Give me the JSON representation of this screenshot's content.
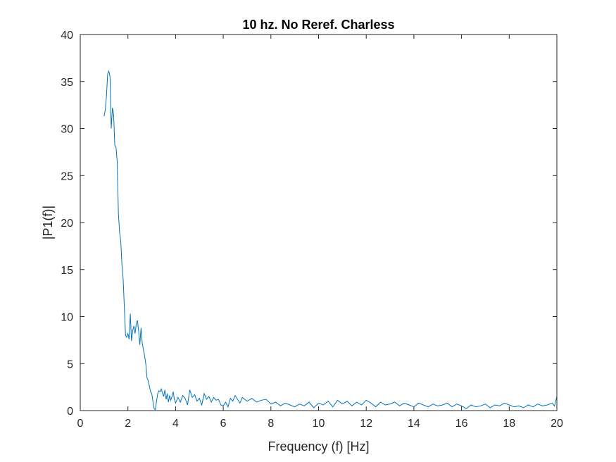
{
  "chart_data": {
    "type": "line",
    "title": "10 hz. No Reref. Charless",
    "xlabel": "Frequency (f) [Hz]",
    "ylabel": "|P1(f)|",
    "xlim": [
      0,
      20
    ],
    "ylim": [
      0,
      40
    ],
    "xticks": [
      0,
      2,
      4,
      6,
      8,
      10,
      12,
      14,
      16,
      18,
      20
    ],
    "yticks": [
      0,
      5,
      10,
      15,
      20,
      25,
      30,
      35,
      40
    ],
    "grid": false,
    "legend": "none",
    "series": [
      {
        "color": "#0072BD",
        "x": [
          1.0,
          1.05,
          1.1,
          1.15,
          1.2,
          1.25,
          1.3,
          1.35,
          1.4,
          1.45,
          1.5,
          1.55,
          1.6,
          1.65,
          1.7,
          1.75,
          1.8,
          1.85,
          1.9,
          1.95,
          2.0,
          2.05,
          2.1,
          2.15,
          2.2,
          2.25,
          2.3,
          2.35,
          2.4,
          2.45,
          2.5,
          2.55,
          2.6,
          2.65,
          2.7,
          2.75,
          2.8,
          2.85,
          2.9,
          2.95,
          3.0,
          3.05,
          3.1,
          3.15,
          3.2,
          3.25,
          3.3,
          3.35,
          3.4,
          3.45,
          3.5,
          3.55,
          3.6,
          3.65,
          3.7,
          3.75,
          3.8,
          3.85,
          3.9,
          3.95,
          4.0,
          4.1,
          4.2,
          4.3,
          4.4,
          4.5,
          4.6,
          4.7,
          4.8,
          4.9,
          5.0,
          5.1,
          5.2,
          5.3,
          5.4,
          5.5,
          5.6,
          5.7,
          5.8,
          5.9,
          6.0,
          6.1,
          6.2,
          6.3,
          6.4,
          6.5,
          6.6,
          6.7,
          6.8,
          6.9,
          7.0,
          7.2,
          7.4,
          7.6,
          7.8,
          8.0,
          8.2,
          8.4,
          8.6,
          8.8,
          9.0,
          9.2,
          9.4,
          9.6,
          9.8,
          10.0,
          10.2,
          10.4,
          10.6,
          10.8,
          11.0,
          11.2,
          11.4,
          11.6,
          11.8,
          12.0,
          12.2,
          12.4,
          12.6,
          12.8,
          13.0,
          13.2,
          13.4,
          13.6,
          13.8,
          14.0,
          14.2,
          14.4,
          14.6,
          14.8,
          15.0,
          15.2,
          15.4,
          15.6,
          15.8,
          16.0,
          16.2,
          16.4,
          16.6,
          16.8,
          17.0,
          17.2,
          17.4,
          17.6,
          17.8,
          18.0,
          18.2,
          18.4,
          18.6,
          18.8,
          19.0,
          19.2,
          19.4,
          19.6,
          19.8,
          19.9,
          20.0
        ],
        "y": [
          31.3,
          32.0,
          33.5,
          35.8,
          36.1,
          35.5,
          30.0,
          32.2,
          31.5,
          28.2,
          28.0,
          26.5,
          21.0,
          19.0,
          18.0,
          15.5,
          14.0,
          11.0,
          8.0,
          7.8,
          8.2,
          7.6,
          10.3,
          7.4,
          8.5,
          9.0,
          8.2,
          9.2,
          9.6,
          8.5,
          7.0,
          8.8,
          7.2,
          6.5,
          5.8,
          5.0,
          3.5,
          3.2,
          2.6,
          2.0,
          1.8,
          1.0,
          0.2,
          0.1,
          1.0,
          1.8,
          2.1,
          2.0,
          2.3,
          1.9,
          1.5,
          2.2,
          1.2,
          1.8,
          0.9,
          1.6,
          1.1,
          1.5,
          2.0,
          1.2,
          0.8,
          1.4,
          0.9,
          1.6,
          1.3,
          0.6,
          2.2,
          1.4,
          1.7,
          1.0,
          1.3,
          0.6,
          1.8,
          1.2,
          1.5,
          0.9,
          1.4,
          1.1,
          1.2,
          0.6,
          0.5,
          0.9,
          0.4,
          1.3,
          1.0,
          1.6,
          1.2,
          0.8,
          1.4,
          1.2,
          1.0,
          1.3,
          0.9,
          1.1,
          1.2,
          0.7,
          0.9,
          0.5,
          0.8,
          0.6,
          0.4,
          0.7,
          0.5,
          0.9,
          0.3,
          0.8,
          0.6,
          1.0,
          0.4,
          1.1,
          0.7,
          1.0,
          0.5,
          0.9,
          0.6,
          1.1,
          0.8,
          0.4,
          0.9,
          0.6,
          0.7,
          0.9,
          0.5,
          0.8,
          0.6,
          0.4,
          0.8,
          0.6,
          0.4,
          0.7,
          0.5,
          0.6,
          0.8,
          0.4,
          0.7,
          0.5,
          0.2,
          0.6,
          0.4,
          0.5,
          0.7,
          0.3,
          0.6,
          0.5,
          0.8,
          0.6,
          0.4,
          0.5,
          0.3,
          0.6,
          0.4,
          0.7,
          0.5,
          0.6,
          0.8,
          0.5,
          1.5
        ]
      }
    ]
  }
}
